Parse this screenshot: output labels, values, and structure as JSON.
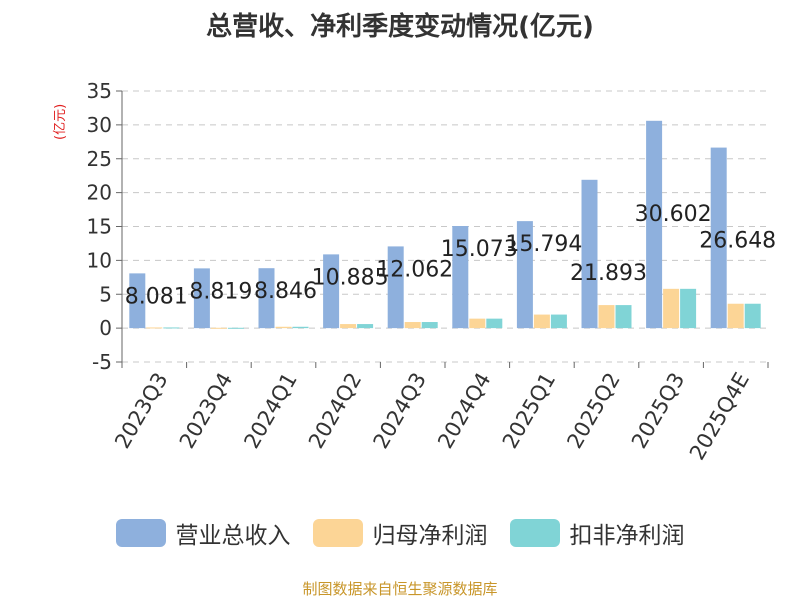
{
  "chart_data": {
    "type": "bar",
    "title": "总营收、净利季度变动情况(亿元)",
    "ylabel": "(亿元)",
    "categories": [
      "2023Q3",
      "2023Q4",
      "2024Q1",
      "2024Q2",
      "2024Q3",
      "2024Q4",
      "2025Q1",
      "2025Q2",
      "2025Q3",
      "2025Q4E"
    ],
    "series": [
      {
        "name": "营业总收入",
        "color": "#8eb0dd",
        "values": [
          8.081,
          8.819,
          8.846,
          10.885,
          12.062,
          15.073,
          15.794,
          21.893,
          30.602,
          26.648
        ]
      },
      {
        "name": "归母净利润",
        "color": "#fcd596",
        "values": [
          0.1,
          0.05,
          0.2,
          0.6,
          0.9,
          1.4,
          2.0,
          3.4,
          5.8,
          3.6
        ]
      },
      {
        "name": "扣非净利润",
        "color": "#80d4d6",
        "values": [
          0.1,
          0.05,
          0.2,
          0.6,
          0.9,
          1.4,
          2.0,
          3.4,
          5.8,
          3.6
        ]
      }
    ],
    "data_labels": [
      "8.081",
      "8.819",
      "8.846",
      "10.885",
      "12.062",
      "15.073",
      "15.794",
      "21.893",
      "30.602",
      "26.648"
    ],
    "ylim": [
      -5,
      35
    ],
    "yticks": [
      35,
      30,
      25,
      20,
      15,
      10,
      5,
      0,
      -5
    ],
    "grid": true,
    "legend_position": "bottom"
  },
  "source": "制图数据来自恒生聚源数据库"
}
